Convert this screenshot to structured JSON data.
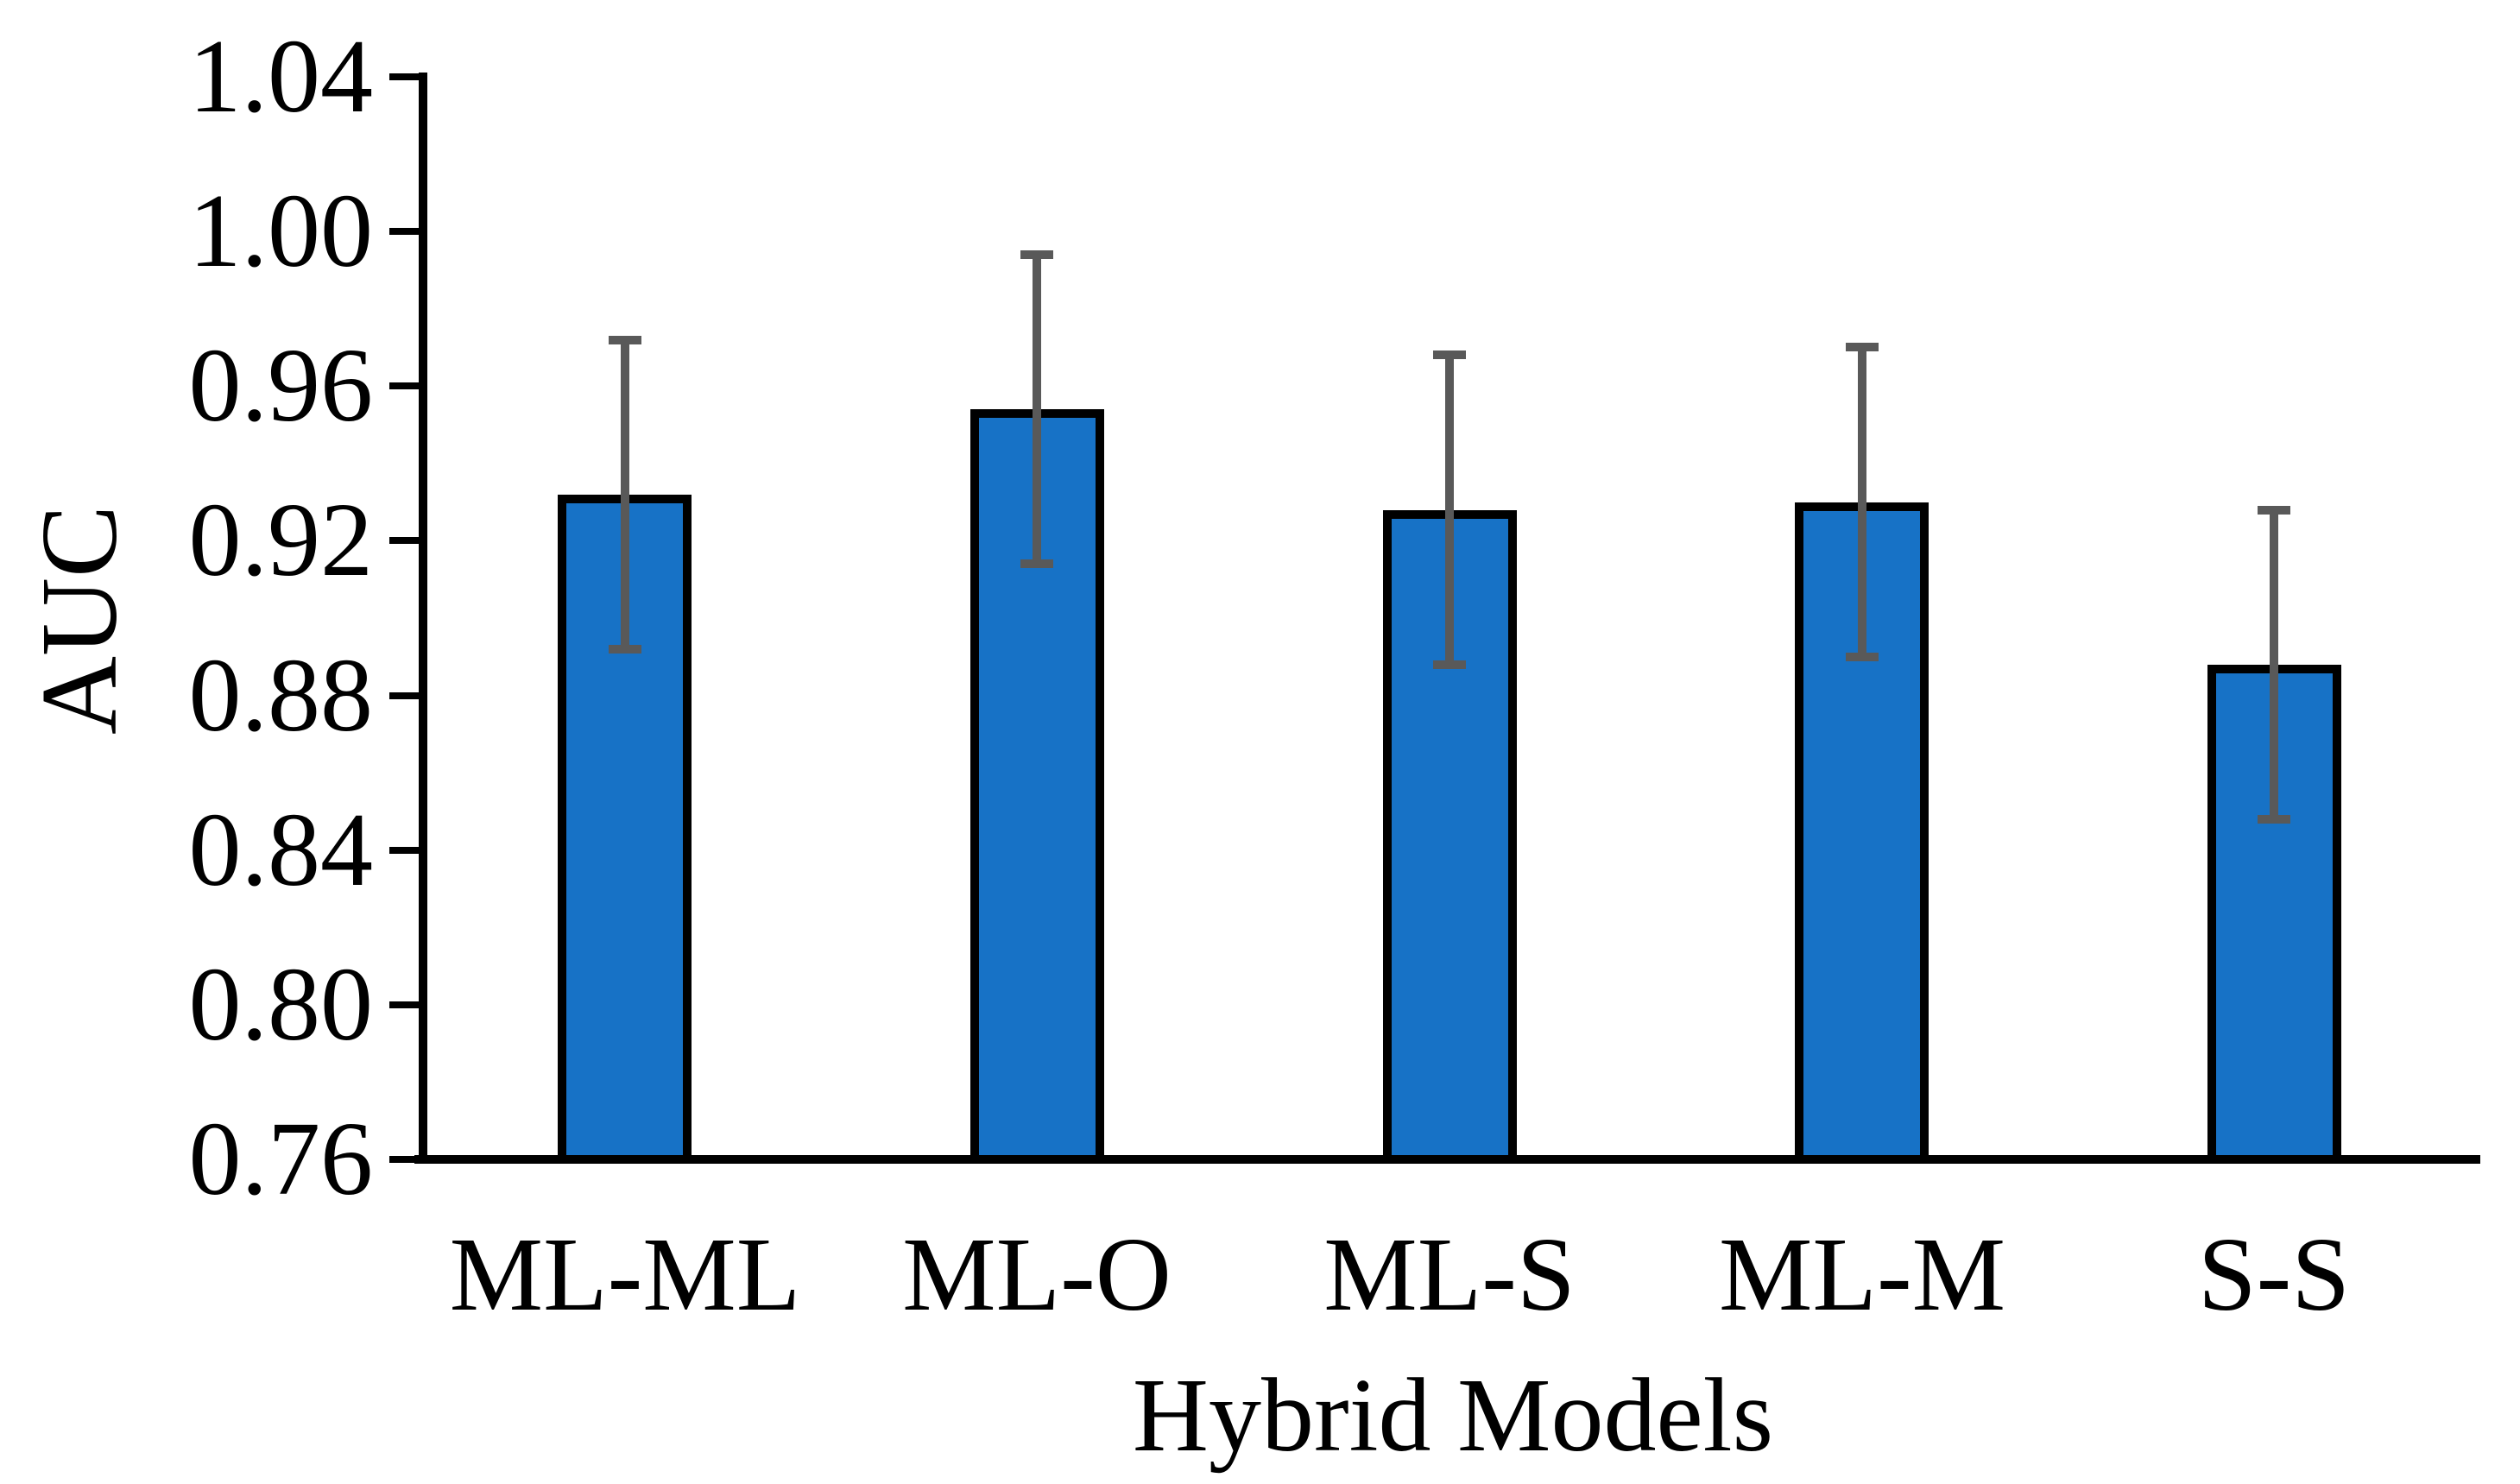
{
  "page": {
    "background": "#FFFFFF"
  },
  "chart_data": {
    "type": "bar",
    "title": "",
    "xlabel": "Hybrid Models",
    "ylabel": "AUC",
    "categories": [
      "ML-ML",
      "ML-O",
      "ML-S",
      "ML-M",
      "S-S"
    ],
    "values": [
      0.932,
      0.954,
      0.928,
      0.93,
      0.888
    ],
    "error_bars": [
      0.04,
      0.04,
      0.04,
      0.04,
      0.04
    ],
    "ylim": [
      0.76,
      1.04
    ],
    "ytick_labels": [
      "1.04",
      "1.00",
      "0.96",
      "0.92",
      "0.88",
      "0.84",
      "0.80",
      "0.76"
    ],
    "grid": "off",
    "legend": "none",
    "colors": {
      "bar_fill": "#1772C6",
      "bar_border": "#000000",
      "error_bar": "#595959",
      "axis": "#000000",
      "text": "#000000"
    }
  }
}
